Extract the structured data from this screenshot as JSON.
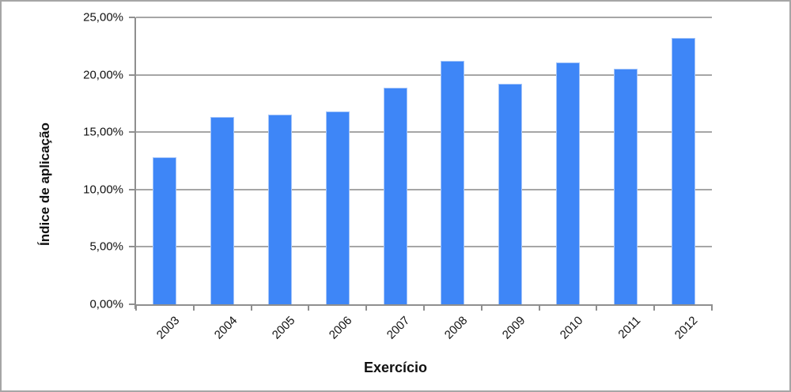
{
  "chart_data": {
    "type": "bar",
    "title": "",
    "xlabel": "Exercício",
    "ylabel": "Índice de aplicação",
    "categories": [
      "2003",
      "2004",
      "2005",
      "2006",
      "2007",
      "2008",
      "2009",
      "2010",
      "2011",
      "2012"
    ],
    "values": [
      12.8,
      16.3,
      16.5,
      16.8,
      18.9,
      21.2,
      19.2,
      21.1,
      20.5,
      23.2
    ],
    "ylim": [
      0,
      25
    ],
    "ytick_step": 5,
    "ytick_labels": [
      "0,00%",
      "5,00%",
      "10,00%",
      "15,00%",
      "20,00%",
      "25,00%"
    ],
    "grid": true,
    "legend": false,
    "colors": {
      "bar_fill": "#3e86f7",
      "bar_border": "#a3c4f9",
      "gridline": "#a6a6a6",
      "axis": "#8f8f8f",
      "text": "#111111",
      "frame_border": "#a6a6a6",
      "background": "#ffffff"
    }
  }
}
